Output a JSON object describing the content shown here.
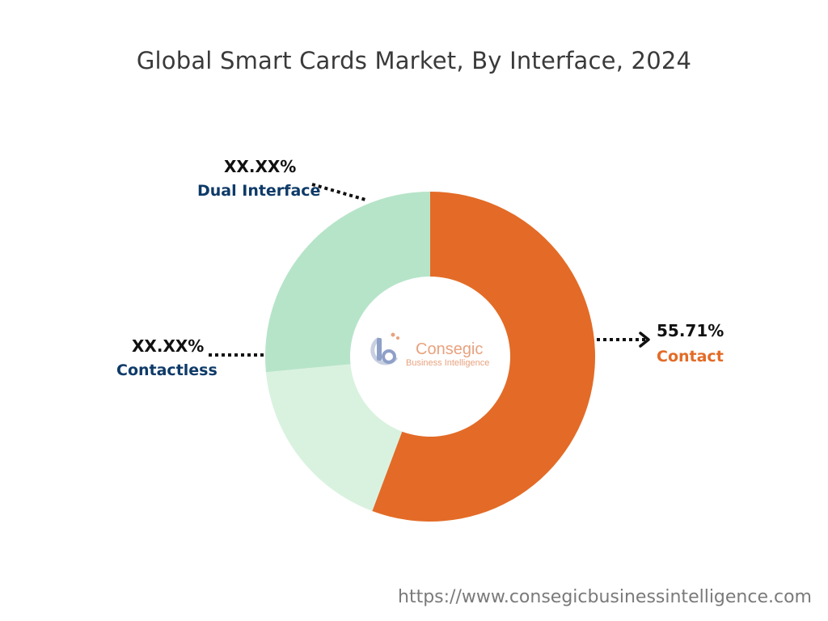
{
  "title": "Global Smart Cards Market, By Interface, 2024",
  "chart_data": {
    "type": "pie",
    "title": "Global Smart Cards Market, By Interface, 2024",
    "slices": [
      {
        "label": "Contact",
        "value": 55.71,
        "value_text": "55.71%",
        "color": "#e36b27",
        "label_color": "#e36b27"
      },
      {
        "label": "Contactless",
        "value": 17.79,
        "value_text": "XX.XX%",
        "color": "#d9f2df",
        "label_color": "#0e3a68"
      },
      {
        "label": "Dual Interface",
        "value": 26.5,
        "value_text": "XX.XX%",
        "color": "#b6e4c9",
        "label_color": "#0e3a68"
      }
    ],
    "donut": true,
    "legend": "none"
  },
  "center_logo": {
    "icon": "cb-logo-icon",
    "name": "Consegic",
    "tagline": "Business Intelligence",
    "name_color": "#e8a27f",
    "tagline_color": "#e8a27f"
  },
  "source_url": "https://www.consegicbusinessintelligence.com"
}
